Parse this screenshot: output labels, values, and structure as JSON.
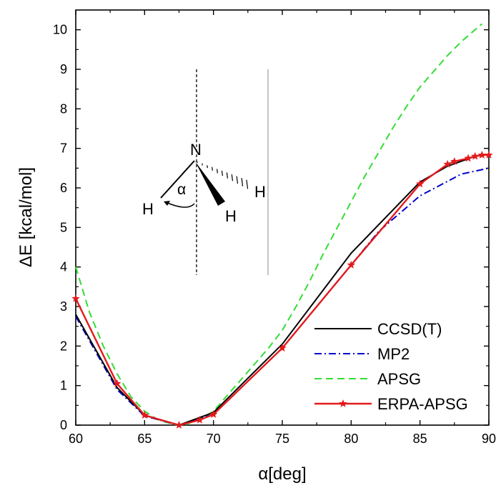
{
  "chart_data": {
    "type": "line",
    "xlabel": "α[deg]",
    "ylabel": "ΔE [kcal/mol]",
    "xlim": [
      60,
      90
    ],
    "ylim": [
      0,
      10.5
    ],
    "xticks": [
      60,
      65,
      70,
      75,
      80,
      85,
      90
    ],
    "yticks": [
      0,
      1,
      2,
      3,
      4,
      5,
      6,
      7,
      8,
      9,
      10
    ],
    "grid": false,
    "legend_position": "bottom-right",
    "series": [
      {
        "name": "CCSD(T)",
        "color": "#000000",
        "style": "solid",
        "marker": "none",
        "x": [
          60,
          63,
          65,
          67.5,
          70,
          75,
          80,
          85,
          87,
          89,
          90
        ],
        "y": [
          2.8,
          0.95,
          0.25,
          0,
          0.32,
          2.05,
          4.35,
          6.15,
          6.55,
          6.8,
          6.85
        ]
      },
      {
        "name": "MP2",
        "color": "#0000cc",
        "style": "dashdot",
        "marker": "none",
        "x": [
          60,
          63,
          65,
          67.5,
          70,
          75,
          80,
          82,
          85,
          88,
          90
        ],
        "y": [
          2.75,
          0.9,
          0.23,
          0,
          0.27,
          1.95,
          4.05,
          4.9,
          5.8,
          6.35,
          6.5
        ]
      },
      {
        "name": "APSG",
        "color": "#33dd33",
        "style": "dashed",
        "marker": "none",
        "x": [
          60,
          61,
          62,
          63,
          64,
          65,
          66,
          67,
          67.5,
          68,
          69,
          70,
          71,
          72,
          73,
          74,
          75,
          76,
          77,
          78,
          79,
          80,
          81,
          82,
          83,
          84,
          85,
          86,
          87,
          88,
          89,
          89.5
        ],
        "y": [
          4.0,
          2.85,
          2.0,
          1.3,
          0.72,
          0.35,
          0.13,
          0.03,
          0,
          0.02,
          0.15,
          0.35,
          0.75,
          1.15,
          1.55,
          1.95,
          2.4,
          3.0,
          3.65,
          4.35,
          5.0,
          5.65,
          6.3,
          6.9,
          7.5,
          8.05,
          8.55,
          8.95,
          9.35,
          9.7,
          10.0,
          10.15
        ]
      },
      {
        "name": "ERPA-APSG",
        "color": "#e31a1c",
        "style": "solid",
        "marker": "star",
        "x": [
          60,
          63,
          65,
          67.5,
          69,
          70,
          75,
          80,
          85,
          87,
          87.5,
          88.5,
          89,
          89.5,
          90
        ],
        "y": [
          3.2,
          1.05,
          0.25,
          0,
          0.13,
          0.27,
          1.95,
          4.05,
          6.1,
          6.6,
          6.67,
          6.75,
          6.8,
          6.83,
          6.83
        ]
      }
    ]
  },
  "inset": {
    "atom_center": "N",
    "atom_left": "H",
    "atom_front": "H",
    "atom_right": "H",
    "angle_label": "α"
  }
}
